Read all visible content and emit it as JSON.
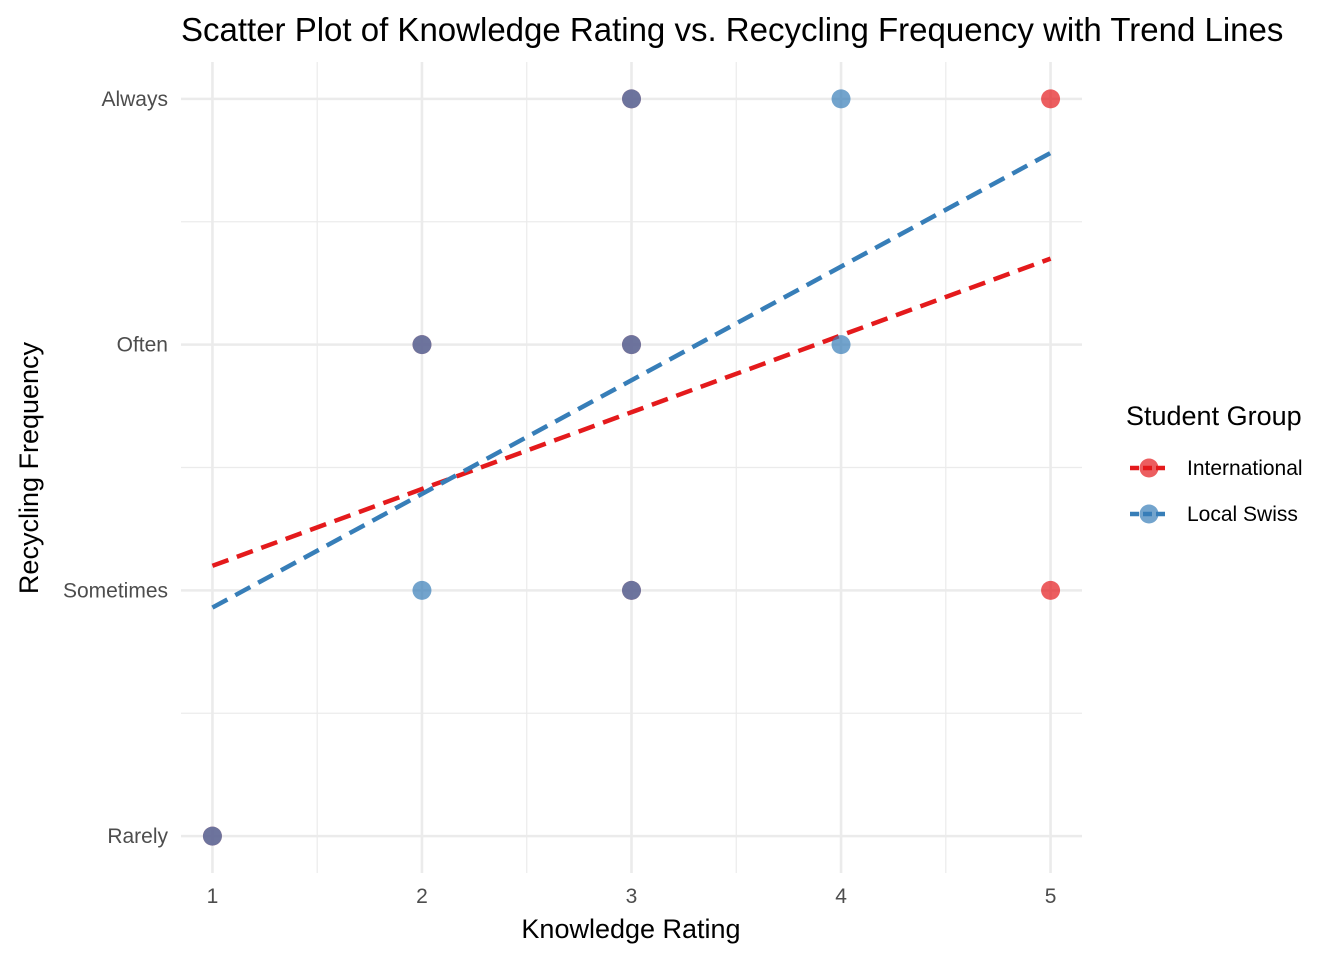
{
  "chart_data": {
    "type": "scatter",
    "title": "Scatter Plot of Knowledge Rating vs. Recycling Frequency with Trend Lines",
    "xlabel": "Knowledge Rating",
    "ylabel": "Recycling Frequency",
    "x_ticks": [
      1,
      2,
      3,
      4,
      5
    ],
    "x_tick_labels": [
      "1",
      "2",
      "3",
      "4",
      "5"
    ],
    "xlim": [
      0.85,
      5.15
    ],
    "y_categories": [
      "Rarely",
      "Sometimes",
      "Often",
      "Always"
    ],
    "ylim": [
      0.85,
      4.15
    ],
    "grid": true,
    "legend": {
      "title": "Student Group",
      "position": "right"
    },
    "series": [
      {
        "name": "International",
        "color": "#E41A1C",
        "points": [
          {
            "x": 2,
            "y": "Often"
          },
          {
            "x": 3,
            "y": "Often"
          },
          {
            "x": 3,
            "y": "Sometimes"
          },
          {
            "x": 5,
            "y": "Always"
          },
          {
            "x": 5,
            "y": "Sometimes"
          },
          {
            "x": 3,
            "y": "Always"
          },
          {
            "x": 1,
            "y": "Rarely"
          }
        ],
        "trend": {
          "x": [
            1,
            5
          ],
          "y": [
            2.1,
            3.35
          ]
        }
      },
      {
        "name": "Local Swiss",
        "color": "#377EB8",
        "points": [
          {
            "x": 2,
            "y": "Sometimes"
          },
          {
            "x": 4,
            "y": "Often"
          },
          {
            "x": 4,
            "y": "Always"
          },
          {
            "x": 2,
            "y": "Often"
          },
          {
            "x": 3,
            "y": "Often"
          },
          {
            "x": 3,
            "y": "Sometimes"
          },
          {
            "x": 3,
            "y": "Always"
          },
          {
            "x": 1,
            "y": "Rarely"
          }
        ],
        "trend": {
          "x": [
            1,
            5
          ],
          "y": [
            1.93,
            3.78
          ]
        }
      }
    ]
  }
}
